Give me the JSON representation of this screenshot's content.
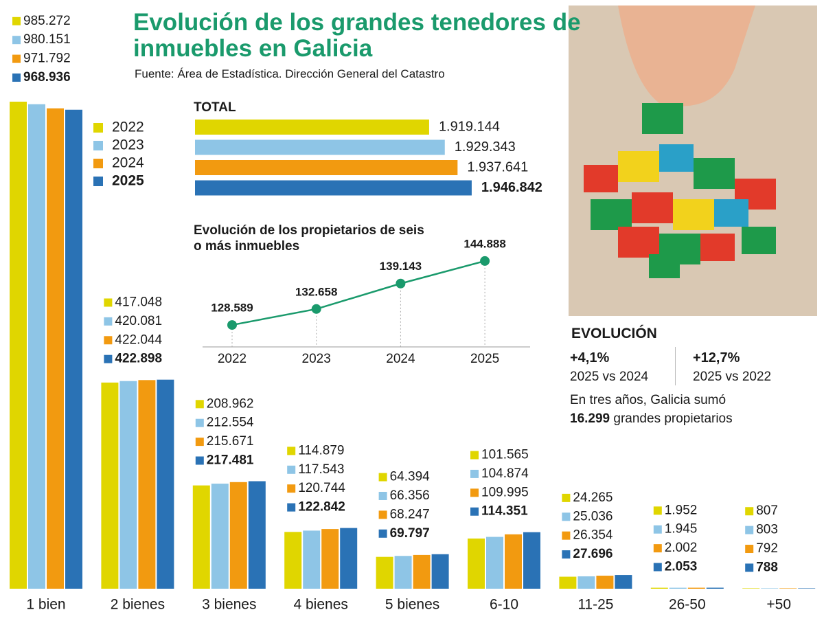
{
  "header": {
    "title": "Evolución de los grandes tenedores de inmuebles en Galicia",
    "source": "Fuente: Área de Estadística. Dirección General del Catastro"
  },
  "chart_data": [
    {
      "type": "bar",
      "categories": [
        "1 bien",
        "2 bienes",
        "3 bienes",
        "4 bienes",
        "5 bienes",
        "6-10",
        "11-25",
        "26-50",
        "+50"
      ],
      "series": [
        {
          "name": "2022",
          "color": "#e0d600",
          "values": [
            985272,
            417048,
            208962,
            114879,
            64394,
            101565,
            24265,
            1952,
            807
          ],
          "value_labels": [
            "985.272",
            "417.048",
            "208.962",
            "114.879",
            "64.394",
            "101.565",
            "24.265",
            "1.952",
            "807"
          ]
        },
        {
          "name": "2023",
          "color": "#8ec5e6",
          "values": [
            980151,
            420081,
            212554,
            117543,
            66356,
            104874,
            25036,
            1945,
            803
          ],
          "value_labels": [
            "980.151",
            "420.081",
            "212.554",
            "117.543",
            "66.356",
            "104.874",
            "25.036",
            "1.945",
            "803"
          ]
        },
        {
          "name": "2024",
          "color": "#f29a10",
          "values": [
            971792,
            422044,
            215671,
            120744,
            68247,
            109995,
            26354,
            2002,
            792
          ],
          "value_labels": [
            "971.792",
            "422.044",
            "215.671",
            "120.744",
            "68.247",
            "109.995",
            "26.354",
            "2.002",
            "792"
          ]
        },
        {
          "name": "2025",
          "color": "#2a72b5",
          "values": [
            968936,
            422898,
            217481,
            122842,
            69797,
            114351,
            27696,
            2053,
            788
          ],
          "value_labels": [
            "968.936",
            "422.898",
            "217.481",
            "122.842",
            "69.797",
            "114.351",
            "27.696",
            "2.053",
            "788"
          ]
        }
      ]
    },
    {
      "type": "hbar",
      "title": "TOTAL",
      "values": [
        1919144,
        1929343,
        1937641,
        1946842
      ],
      "value_labels": [
        "1.919.144",
        "1.929.343",
        "1.937.641",
        "1.946.842"
      ],
      "colors": [
        "#e0d600",
        "#8ec5e6",
        "#f29a10",
        "#2a72b5"
      ],
      "xlim": [
        1766800,
        1950000
      ]
    },
    {
      "type": "line",
      "title": "Evolución de los propietarios de seis o más inmuebles",
      "categories": [
        "2022",
        "2023",
        "2024",
        "2025"
      ],
      "values": [
        128589,
        132658,
        139143,
        144888
      ],
      "value_labels": [
        "128.589",
        "132.658",
        "139.143",
        "144.888"
      ],
      "color": "#1a9a6c",
      "ylim": [
        123000,
        151000
      ]
    }
  ],
  "evolucion": {
    "title": "EVOLUCIÓN",
    "items": [
      {
        "value": "+4,1%",
        "label": "2025 vs 2024"
      },
      {
        "value": "+12,7%",
        "label": "2025 vs 2022"
      }
    ],
    "note": "En tres años, Galicia sumó",
    "note_number": "16.299",
    "note_end": "grandes propietarios"
  }
}
